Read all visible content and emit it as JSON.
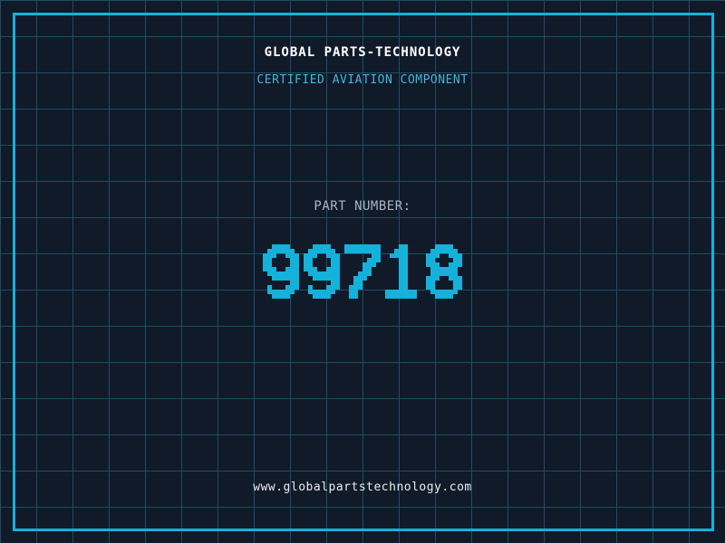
{
  "colors": {
    "background": "#101a29",
    "grid_line": "#1e4e64",
    "frame_border": "#14b2da",
    "title_text": "#ffffff",
    "subtitle_text": "#45b6d8",
    "part_label_text": "#a9b6c2",
    "digits": "#14b2da",
    "footer_text": "#e9edf0"
  },
  "header": {
    "title": "GLOBAL PARTS-TECHNOLOGY",
    "subtitle": "CERTIFIED AVIATION COMPONENT"
  },
  "part": {
    "label": "PART NUMBER:",
    "value": "99718"
  },
  "footer": {
    "url": "www.globalpartstechnology.com"
  }
}
